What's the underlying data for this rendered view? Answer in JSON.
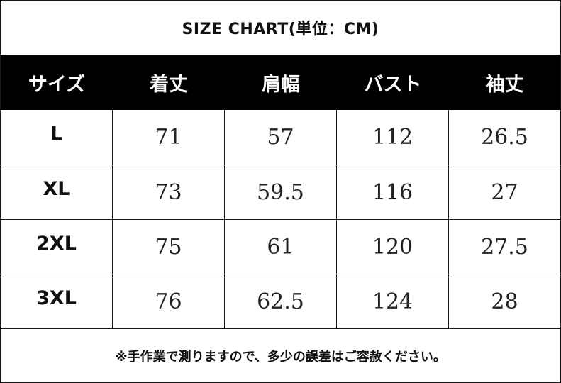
{
  "title": "SIZE CHART(単位：CM)",
  "columns": [
    "サイズ",
    "着丈",
    "肩幅",
    "バスト",
    "袖丈"
  ],
  "rows": [
    {
      "size": "L",
      "cells": [
        "71",
        "57",
        "112",
        "26.5"
      ]
    },
    {
      "size": "XL",
      "cells": [
        "73",
        "59.5",
        "116",
        "27"
      ]
    },
    {
      "size": "2XL",
      "cells": [
        "75",
        "61",
        "120",
        "27.5"
      ]
    },
    {
      "size": "3XL",
      "cells": [
        "76",
        "62.5",
        "124",
        "28"
      ]
    }
  ],
  "note": "※手作業で測りますので、多少の誤差はご容赦ください。",
  "colors": {
    "header_bg": "#000000",
    "header_text": "#ffffff",
    "border": "#1a1a1a"
  }
}
